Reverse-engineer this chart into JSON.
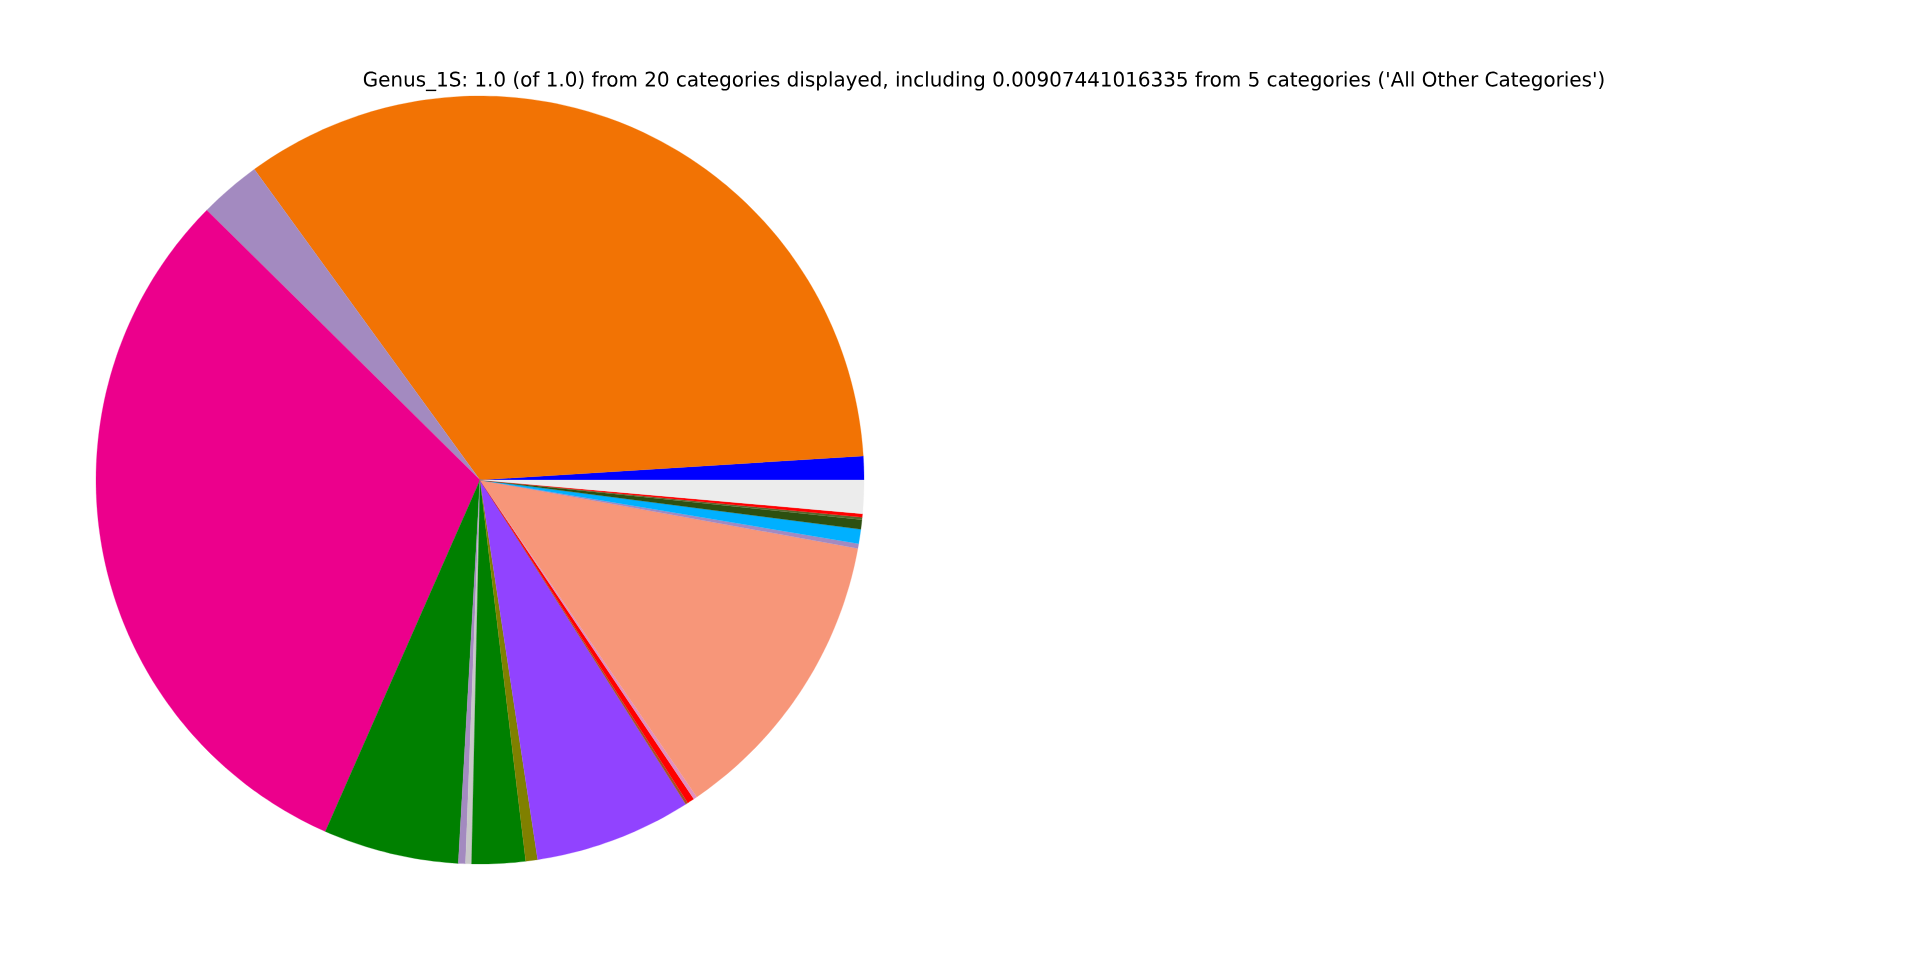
{
  "chart_data": {
    "type": "pie",
    "title": "Genus_1S: 1.0 (of 1.0) from 20 categories displayed, including 0.00907441016335 from 5 categories ('All Other Categories')",
    "categories": [
      null,
      null,
      null,
      null,
      null,
      null,
      null,
      null,
      null,
      null,
      null,
      null,
      null,
      null,
      null,
      null,
      null,
      null,
      null,
      null
    ],
    "values": [
      1.0,
      34.0,
      2.6,
      30.8,
      5.7,
      0.3,
      0.25,
      2.25,
      0.5,
      6.6,
      0.1,
      0.3,
      0.15,
      12.6,
      0.2,
      0.6,
      0.4,
      0.1,
      0.15,
      1.4
    ],
    "colors": [
      "#0000ff",
      "#f27304",
      "#a38ac0",
      "#ec008c",
      "#008000",
      "#a38ac0",
      "#c8c8c8",
      "#008000",
      "#808000",
      "#9143ff",
      "#a0522d",
      "#ff0000",
      "#e090c0",
      "#f79679",
      "#a38ac0",
      "#00b0ff",
      "#2d5010",
      "#556b2f",
      "#ff0000",
      "#ececec"
    ]
  }
}
